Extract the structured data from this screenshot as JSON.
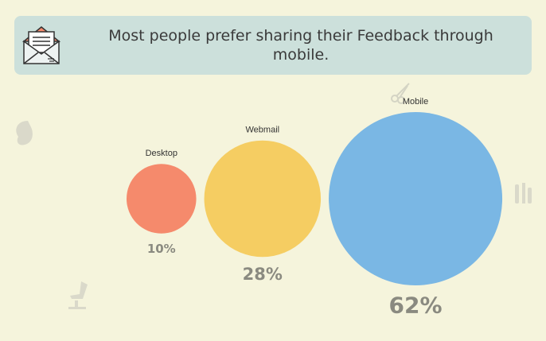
{
  "banner": {
    "message": "Most people prefer sharing their Feedback through mobile.",
    "icon": "envelope-letter-icon"
  },
  "colors": {
    "background": "#f5f4dc",
    "banner": "#cce0db",
    "desktop": "#f58a6c",
    "webmail": "#f5cd62",
    "mobile": "#7ab7e4",
    "percent_text": "#8a8a80"
  },
  "chart_data": {
    "type": "bubble",
    "title": "",
    "categories": [
      "Desktop",
      "Webmail",
      "Mobile"
    ],
    "values": [
      10,
      28,
      62
    ],
    "value_labels": [
      "10%",
      "28%",
      "62%"
    ],
    "legend": "none",
    "grid": false
  }
}
